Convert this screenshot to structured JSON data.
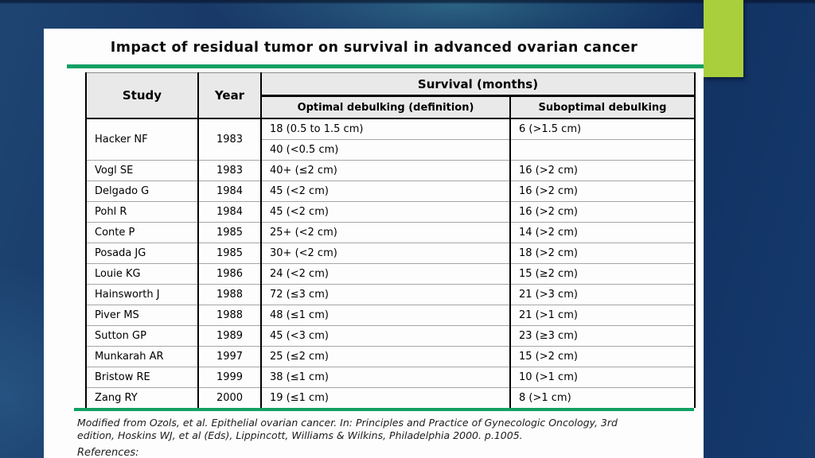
{
  "slide": {
    "title": "Impact of residual tumor on survival in advanced ovarian cancer",
    "citation": "Modified from Ozols, et al. Epithelial ovarian cancer. In: Principles and Practice of Gynecologic Oncology, 3rd edition, Hoskins WJ, et al (Eds), Lippincott, Williams & Wilkins, Philadelphia 2000. p.1005.",
    "references_label": "References:"
  },
  "table": {
    "headers": {
      "study": "Study",
      "year": "Year",
      "survival": "Survival (months)",
      "optimal": "Optimal debulking (definition)",
      "suboptimal": "Suboptimal debulking"
    },
    "rows": [
      {
        "study": "Hacker NF",
        "year": "1983",
        "optimal": "18 (0.5 to 1.5 cm)",
        "suboptimal": "6 (>1.5 cm)",
        "extra": [
          {
            "optimal": "40 (<0.5 cm)",
            "suboptimal": ""
          }
        ]
      },
      {
        "study": "Vogl SE",
        "year": "1983",
        "optimal": "40+ (≤2 cm)",
        "suboptimal": "16 (>2 cm)"
      },
      {
        "study": "Delgado G",
        "year": "1984",
        "optimal": "45 (<2 cm)",
        "suboptimal": "16 (>2 cm)"
      },
      {
        "study": "Pohl R",
        "year": "1984",
        "optimal": "45 (<2 cm)",
        "suboptimal": "16 (>2 cm)"
      },
      {
        "study": "Conte P",
        "year": "1985",
        "optimal": "25+ (<2 cm)",
        "suboptimal": "14 (>2 cm)"
      },
      {
        "study": "Posada JG",
        "year": "1985",
        "optimal": "30+ (<2 cm)",
        "suboptimal": "18 (>2 cm)"
      },
      {
        "study": "Louie KG",
        "year": "1986",
        "optimal": "24 (<2 cm)",
        "suboptimal": "15 (≥2 cm)"
      },
      {
        "study": "Hainsworth J",
        "year": "1988",
        "optimal": "72 (≤3 cm)",
        "suboptimal": "21 (>3 cm)"
      },
      {
        "study": "Piver MS",
        "year": "1988",
        "optimal": "48 (≤1 cm)",
        "suboptimal": "21 (>1 cm)"
      },
      {
        "study": "Sutton GP",
        "year": "1989",
        "optimal": "45 (<3 cm)",
        "suboptimal": "23 (≥3 cm)"
      },
      {
        "study": "Munkarah AR",
        "year": "1997",
        "optimal": "25 (≤2 cm)",
        "suboptimal": "15 (>2 cm)"
      },
      {
        "study": "Bristow RE",
        "year": "1999",
        "optimal": "38 (≤1 cm)",
        "suboptimal": "10 (>1 cm)"
      },
      {
        "study": "Zang RY",
        "year": "2000",
        "optimal": "19 (≤1 cm)",
        "suboptimal": "8 (>1 cm)"
      }
    ]
  },
  "colors": {
    "background_navy": "#12305f",
    "accent_lime": "#a9cf3c",
    "accent_teal": "#12a064",
    "header_gray": "#e9e9e9"
  }
}
